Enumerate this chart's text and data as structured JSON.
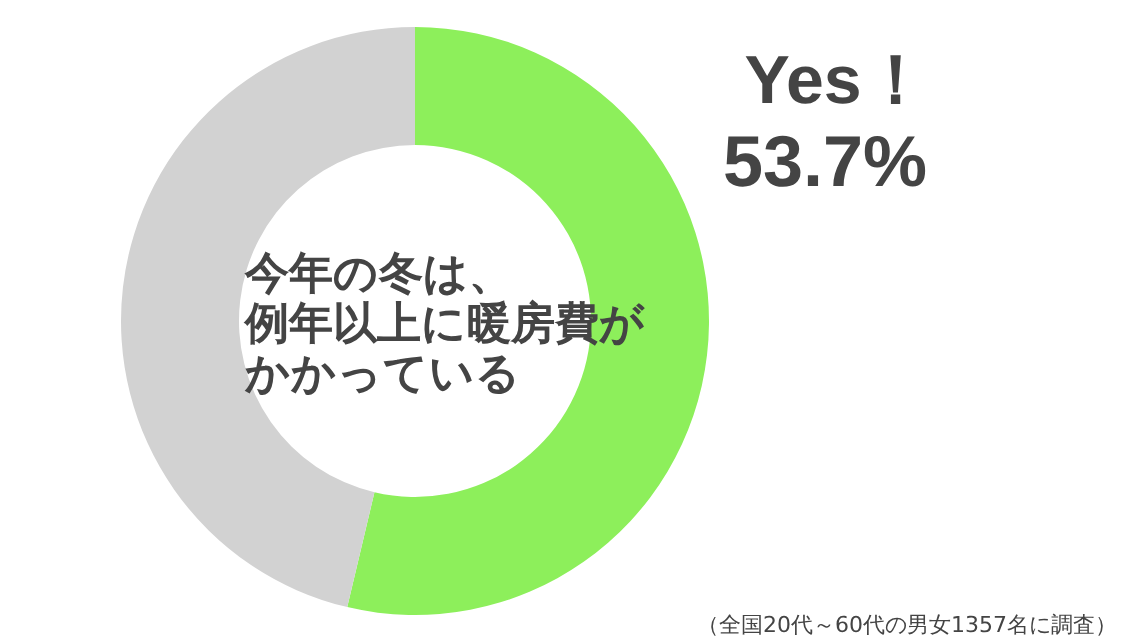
{
  "chart_data": {
    "type": "donut",
    "title": "今年の冬は、例年以上に暖房費がかかっている",
    "categories": [
      "Yes！",
      null
    ],
    "values": [
      53.7,
      46.3
    ],
    "colors": [
      "#8def5b",
      "#d2d2d2"
    ],
    "value_labels": [
      "53.7%",
      null
    ],
    "annotations": [
      "（全国20代～60代の男女1357名に調査）"
    ]
  }
}
